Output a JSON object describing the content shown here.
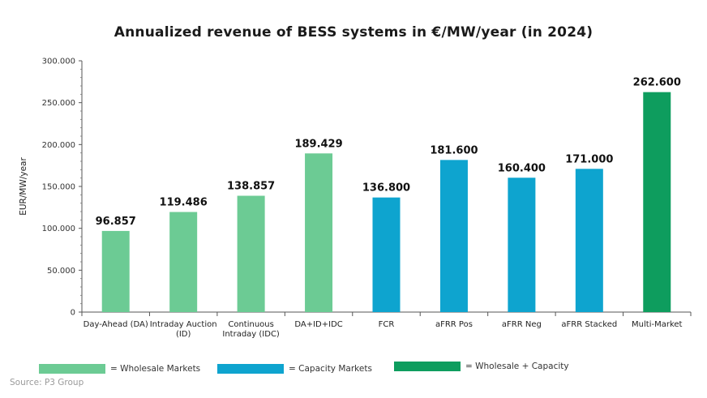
{
  "colors": {
    "wholesale": "#6ccb94",
    "capacity": "#0ea4cf",
    "combined": "#0e9d5e"
  },
  "source": "Source: P3 Group",
  "legend": [
    {
      "label": "= Wholesale Markets",
      "color_key": "wholesale"
    },
    {
      "label": "= Capacity Markets",
      "color_key": "capacity"
    },
    {
      "label": "= Wholesale + Capacity",
      "color_key": "combined"
    }
  ],
  "chart_data": {
    "type": "bar",
    "title": "Annualized revenue of BESS systems in €/MW/year (in 2024)",
    "xlabel": "",
    "ylabel": "EUR/MW/year",
    "ylim": [
      0,
      300000
    ],
    "grid": false,
    "legend_position": "bottom",
    "y_ticks": [
      {
        "value": 0,
        "label": "0"
      },
      {
        "value": 50000,
        "label": "50.000"
      },
      {
        "value": 100000,
        "label": "100.000"
      },
      {
        "value": 150000,
        "label": "150.000"
      },
      {
        "value": 200000,
        "label": "200.000"
      },
      {
        "value": 250000,
        "label": "250.000"
      },
      {
        "value": 300000,
        "label": "300.000"
      }
    ],
    "categories": [
      [
        "Day-Ahead (DA)"
      ],
      [
        "Intraday Auction",
        "(ID)"
      ],
      [
        "Continuous",
        "Intraday (IDC)"
      ],
      [
        "DA+ID+IDC"
      ],
      [
        "FCR"
      ],
      [
        "aFRR Pos"
      ],
      [
        "aFRR Neg"
      ],
      [
        "aFRR Stacked"
      ],
      [
        "Multi-Market"
      ]
    ],
    "values": [
      96857,
      119486,
      138857,
      189429,
      136800,
      181600,
      160400,
      171000,
      262600
    ],
    "value_labels": [
      "96.857",
      "119.486",
      "138.857",
      "189.429",
      "136.800",
      "181.600",
      "160.400",
      "171.000",
      "262.600"
    ],
    "groups": [
      "wholesale",
      "wholesale",
      "wholesale",
      "wholesale",
      "capacity",
      "capacity",
      "capacity",
      "capacity",
      "combined"
    ]
  }
}
